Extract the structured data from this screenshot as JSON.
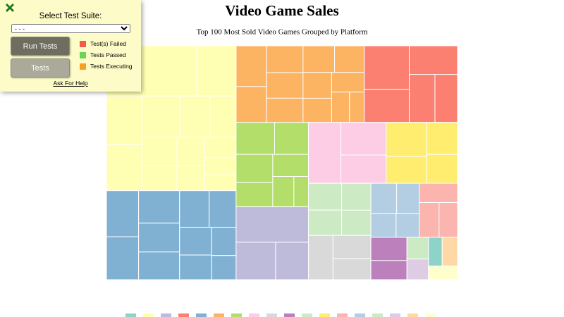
{
  "panel": {
    "title": "Select Test Suite:",
    "select_option": "- - -",
    "buttons": [
      "Run Tests",
      "Tests"
    ],
    "legend": [
      {
        "color": "#f25a4a",
        "label": "Test(s) Failed"
      },
      {
        "color": "#6bd35a",
        "label": "Tests Passed"
      },
      {
        "color": "#f5a020",
        "label": "Tests Executing"
      }
    ],
    "help": "Ask For Help"
  },
  "chart_data": {
    "type": "treemap",
    "title": "Video Game Sales",
    "subtitle": "Top 100 Most Sold Video Games Grouped by Platform",
    "groups": [
      {
        "color": "#ffffb3",
        "values": [
          92,
          40,
          35,
          33,
          32,
          25,
          22,
          20,
          18,
          16,
          14,
          13,
          11,
          10
        ]
      },
      {
        "color": "#80b1d3",
        "values": [
          30,
          28,
          27,
          24,
          23,
          22,
          20,
          18,
          16,
          14,
          12
        ]
      },
      {
        "color": "#fdb462",
        "values": [
          25,
          22,
          20,
          19,
          18,
          17,
          16,
          15,
          14,
          13,
          11,
          9
        ]
      },
      {
        "color": "#fb8072",
        "values": [
          40,
          30,
          28,
          25,
          22
        ]
      },
      {
        "color": "#b3de69",
        "values": [
          25,
          22,
          21,
          18,
          16,
          13,
          9
        ]
      },
      {
        "color": "#bebada",
        "values": [
          52,
          30,
          25
        ]
      },
      {
        "color": "#fccde5",
        "values": [
          40,
          30,
          26
        ]
      },
      {
        "color": "#ffed6f",
        "values": [
          28,
          22,
          20,
          18
        ]
      },
      {
        "color": "#ccebc5",
        "values": [
          18,
          17,
          16,
          15
        ]
      },
      {
        "color": "#d9d9d9",
        "values": [
          22,
          18,
          16
        ]
      },
      {
        "color": "#b3cde3",
        "values": [
          16,
          14,
          12,
          11
        ]
      },
      {
        "color": "#fbb4ae",
        "values": [
          15,
          14,
          13
        ]
      },
      {
        "color": "#bc80bd",
        "values": [
          17,
          14
        ]
      },
      {
        "color": "#ccebc5",
        "values": [
          9.5
        ]
      },
      {
        "color": "#decbe4",
        "values": [
          9
        ]
      },
      {
        "color": "#8dd3c7",
        "values": [
          8
        ]
      },
      {
        "color": "#fed9a6",
        "values": [
          9
        ]
      },
      {
        "color": "#ffffcc",
        "values": [
          8
        ]
      }
    ],
    "legend_colors": [
      "#8dd3c7",
      "#ffffb3",
      "#bebada",
      "#fb8072",
      "#80b1d3",
      "#fdb462",
      "#b3de69",
      "#fccde5",
      "#d9d9d9",
      "#bc80bd",
      "#ccebc5",
      "#ffed6f",
      "#fbb4ae",
      "#b3cde3",
      "#ccebc5",
      "#decbe4",
      "#fed9a6",
      "#ffffcc"
    ]
  }
}
